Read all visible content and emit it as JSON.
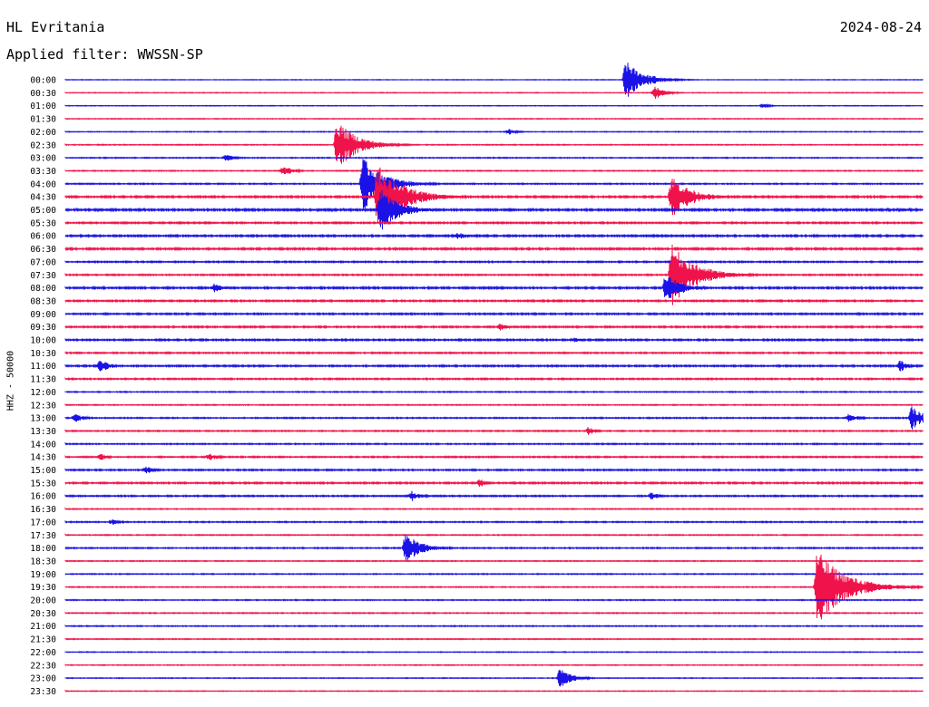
{
  "header": {
    "station": "HL Evritania",
    "date": "2024-08-24",
    "filter_label": "Applied filter: WWSSN-SP",
    "channel_label": "HHZ - 50000"
  },
  "colors": {
    "even_row": "#1a12e6",
    "odd_row": "#f0124a",
    "text": "#000000"
  },
  "chart_data": {
    "type": "line",
    "title": "HL Evritania",
    "subtitle": "Applied filter: WWSSN-SP",
    "ylabel": "HHZ - 50000",
    "xlabel": "",
    "rows": [
      "00:00",
      "00:30",
      "01:00",
      "01:30",
      "02:00",
      "02:30",
      "03:00",
      "03:30",
      "04:00",
      "04:30",
      "05:00",
      "05:30",
      "06:00",
      "06:30",
      "07:00",
      "07:30",
      "08:00",
      "08:30",
      "09:00",
      "09:30",
      "10:00",
      "10:30",
      "11:00",
      "11:30",
      "12:00",
      "12:30",
      "13:00",
      "13:30",
      "14:00",
      "14:30",
      "15:00",
      "15:30",
      "16:00",
      "16:30",
      "17:00",
      "17:30",
      "18:00",
      "18:30",
      "19:00",
      "19:30",
      "20:00",
      "20:30",
      "21:00",
      "21:30",
      "22:00",
      "22:30",
      "23:00",
      "23:30"
    ],
    "row_minutes": 30,
    "noise_levels": [
      0.3,
      0.35,
      0.35,
      0.4,
      0.4,
      0.45,
      0.5,
      0.5,
      0.6,
      0.9,
      1.0,
      0.8,
      0.9,
      0.9,
      0.7,
      0.7,
      0.9,
      0.8,
      0.8,
      0.8,
      0.8,
      0.7,
      0.8,
      0.7,
      0.5,
      0.5,
      0.6,
      0.6,
      0.6,
      0.7,
      0.7,
      0.8,
      0.7,
      0.5,
      0.6,
      0.5,
      0.6,
      0.5,
      0.5,
      0.5,
      0.5,
      0.5,
      0.5,
      0.5,
      0.4,
      0.4,
      0.4,
      0.4
    ],
    "events": [
      {
        "row": 0,
        "minute": 19.6,
        "amplitude": 22
      },
      {
        "row": 0,
        "minute": 20.6,
        "amplitude": 5
      },
      {
        "row": 1,
        "minute": 20.6,
        "amplitude": 8
      },
      {
        "row": 2,
        "minute": 24.4,
        "amplitude": 3
      },
      {
        "row": 4,
        "minute": 15.5,
        "amplitude": 4
      },
      {
        "row": 5,
        "minute": 9.5,
        "amplitude": 28
      },
      {
        "row": 6,
        "minute": 5.6,
        "amplitude": 5
      },
      {
        "row": 7,
        "minute": 7.6,
        "amplitude": 7
      },
      {
        "row": 8,
        "minute": 10.4,
        "amplitude": 30
      },
      {
        "row": 9,
        "minute": 10.9,
        "amplitude": 38
      },
      {
        "row": 9,
        "minute": 21.2,
        "amplitude": 25
      },
      {
        "row": 10,
        "minute": 11.0,
        "amplitude": 25
      },
      {
        "row": 12,
        "minute": 13.7,
        "amplitude": 5
      },
      {
        "row": 15,
        "minute": 21.2,
        "amplitude": 35
      },
      {
        "row": 16,
        "minute": 21.0,
        "amplitude": 18
      },
      {
        "row": 16,
        "minute": 5.2,
        "amplitude": 6
      },
      {
        "row": 19,
        "minute": 15.2,
        "amplitude": 4
      },
      {
        "row": 20,
        "minute": 17.8,
        "amplitude": 4
      },
      {
        "row": 22,
        "minute": 1.2,
        "amplitude": 8
      },
      {
        "row": 22,
        "minute": 29.2,
        "amplitude": 7
      },
      {
        "row": 26,
        "minute": 0.3,
        "amplitude": 6
      },
      {
        "row": 26,
        "minute": 27.4,
        "amplitude": 6
      },
      {
        "row": 26,
        "minute": 29.6,
        "amplitude": 14
      },
      {
        "row": 27,
        "minute": 18.3,
        "amplitude": 5
      },
      {
        "row": 29,
        "minute": 1.2,
        "amplitude": 5
      },
      {
        "row": 29,
        "minute": 5.0,
        "amplitude": 5
      },
      {
        "row": 30,
        "minute": 2.8,
        "amplitude": 5
      },
      {
        "row": 31,
        "minute": 14.5,
        "amplitude": 5
      },
      {
        "row": 32,
        "minute": 12.1,
        "amplitude": 6
      },
      {
        "row": 32,
        "minute": 20.5,
        "amplitude": 5
      },
      {
        "row": 34,
        "minute": 1.6,
        "amplitude": 4
      },
      {
        "row": 36,
        "minute": 11.9,
        "amplitude": 18
      },
      {
        "row": 39,
        "minute": 26.3,
        "amplitude": 42
      },
      {
        "row": 46,
        "minute": 17.3,
        "amplitude": 12
      }
    ]
  }
}
